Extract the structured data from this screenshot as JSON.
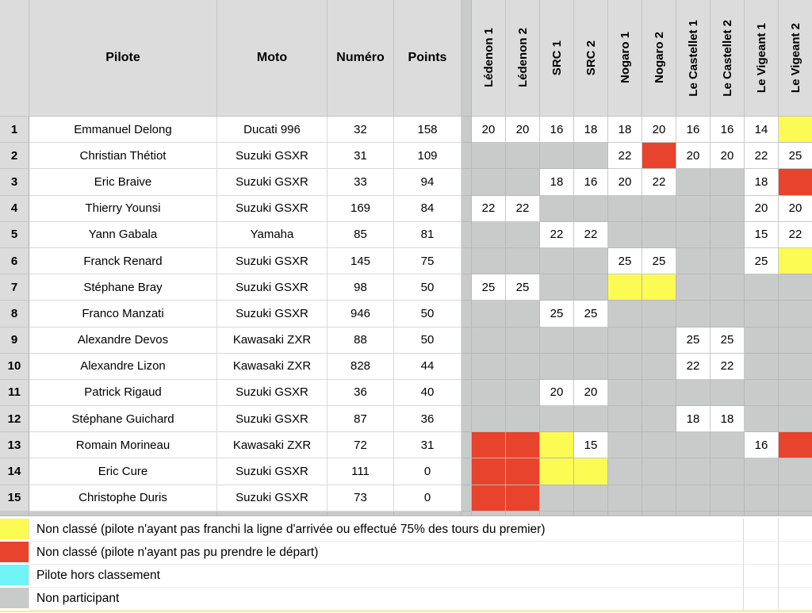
{
  "table": {
    "column_headers": {
      "pilote": "Pilote",
      "moto": "Moto",
      "numero": "Numéro",
      "points": "Points"
    },
    "race_headers": [
      "Lédenon 1",
      "Lédenon 2",
      "SRC 1",
      "SRC 2",
      "Nogaro 1",
      "Nogaro 2",
      "Le Castellet 1",
      "Le Castellet 2",
      "Le Vigeant 1",
      "Le Vigeant 2"
    ],
    "rows": [
      {
        "rank": "1",
        "pilote": "Emmanuel Delong",
        "moto": "Ducati 996",
        "numero": "32",
        "points": "158",
        "results": [
          "20",
          "20",
          "16",
          "18",
          "18",
          "20",
          "16",
          "16",
          "14",
          "DNF"
        ]
      },
      {
        "rank": "2",
        "pilote": "Christian Thétiot",
        "moto": "Suzuki GSXR",
        "numero": "31",
        "points": "109",
        "results": [
          "",
          "",
          "",
          "",
          "22",
          "DNS",
          "20",
          "20",
          "22",
          "25"
        ]
      },
      {
        "rank": "3",
        "pilote": "Eric Braive",
        "moto": "Suzuki GSXR",
        "numero": "33",
        "points": "94",
        "results": [
          "",
          "",
          "18",
          "16",
          "20",
          "22",
          "",
          "",
          "18",
          "DNS"
        ]
      },
      {
        "rank": "4",
        "pilote": "Thierry Younsi",
        "moto": "Suzuki GSXR",
        "numero": "169",
        "points": "84",
        "results": [
          "22",
          "22",
          "",
          "",
          "",
          "",
          "",
          "",
          "20",
          "20"
        ]
      },
      {
        "rank": "5",
        "pilote": "Yann Gabala",
        "moto": "Yamaha",
        "numero": "85",
        "points": "81",
        "results": [
          "",
          "",
          "22",
          "22",
          "",
          "",
          "",
          "",
          "15",
          "22"
        ]
      },
      {
        "rank": "6",
        "pilote": "Franck Renard",
        "moto": "Suzuki GSXR",
        "numero": "145",
        "points": "75",
        "results": [
          "",
          "",
          "",
          "",
          "25",
          "25",
          "",
          "",
          "25",
          "DNF"
        ]
      },
      {
        "rank": "7",
        "pilote": "Stéphane Bray",
        "moto": "Suzuki GSXR",
        "numero": "98",
        "points": "50",
        "results": [
          "25",
          "25",
          "",
          "",
          "DNF",
          "DNF",
          "",
          "",
          "",
          ""
        ]
      },
      {
        "rank": "8",
        "pilote": "Franco Manzati",
        "moto": "Suzuki GSXR",
        "numero": "946",
        "points": "50",
        "results": [
          "",
          "",
          "25",
          "25",
          "",
          "",
          "",
          "",
          "",
          ""
        ]
      },
      {
        "rank": "9",
        "pilote": "Alexandre Devos",
        "moto": "Kawasaki ZXR",
        "numero": "88",
        "points": "50",
        "results": [
          "",
          "",
          "",
          "",
          "",
          "",
          "25",
          "25",
          "",
          ""
        ]
      },
      {
        "rank": "10",
        "pilote": "Alexandre Lizon",
        "moto": "Kawasaki ZXR",
        "numero": "828",
        "points": "44",
        "results": [
          "",
          "",
          "",
          "",
          "",
          "",
          "22",
          "22",
          "",
          ""
        ]
      },
      {
        "rank": "11",
        "pilote": "Patrick Rigaud",
        "moto": "Suzuki GSXR",
        "numero": "36",
        "points": "40",
        "results": [
          "",
          "",
          "20",
          "20",
          "",
          "",
          "",
          "",
          "",
          ""
        ]
      },
      {
        "rank": "12",
        "pilote": "Stéphane Guichard",
        "moto": "Suzuki GSXR",
        "numero": "87",
        "points": "36",
        "results": [
          "",
          "",
          "",
          "",
          "",
          "",
          "18",
          "18",
          "",
          ""
        ]
      },
      {
        "rank": "13",
        "pilote": "Romain Morineau",
        "moto": "Kawasaki ZXR",
        "numero": "72",
        "points": "31",
        "results": [
          "DNS",
          "DNS",
          "DNF",
          "15",
          "",
          "",
          "",
          "",
          "16",
          "DNS"
        ]
      },
      {
        "rank": "14",
        "pilote": "Eric Cure",
        "moto": "Suzuki GSXR",
        "numero": "111",
        "points": "0",
        "results": [
          "DNS",
          "DNS",
          "DNF",
          "DNF",
          "",
          "",
          "",
          "",
          "",
          ""
        ]
      },
      {
        "rank": "15",
        "pilote": "Christophe Duris",
        "moto": "Suzuki GSXR",
        "numero": "73",
        "points": "0",
        "results": [
          "DNS",
          "DNS",
          "",
          "",
          "",
          "",
          "",
          "",
          "",
          ""
        ]
      }
    ]
  },
  "legend": {
    "items": [
      {
        "color": "#fbfb54",
        "status": "non-classe-dnf",
        "label": "Non classé (pilote n'ayant pas franchi la ligne d'arrivée ou effectué 75% des tours du premier)"
      },
      {
        "color": "#e8432d",
        "status": "non-classe-dns",
        "label": "Non classé (pilote n'ayant pas pu prendre le départ)"
      },
      {
        "color": "#70f5f7",
        "status": "hors-classement",
        "label": "Pilote hors classement"
      },
      {
        "color": "#c9cbca",
        "status": "non-participant",
        "label": "Non participant"
      }
    ]
  },
  "colors": {
    "header_bg": "#dbdcdb",
    "non_participant_gray": "#c9cbca",
    "dnf_yellow": "#fbfb54",
    "dns_red": "#e8432d",
    "hors_classement_cyan": "#70f5f7"
  }
}
